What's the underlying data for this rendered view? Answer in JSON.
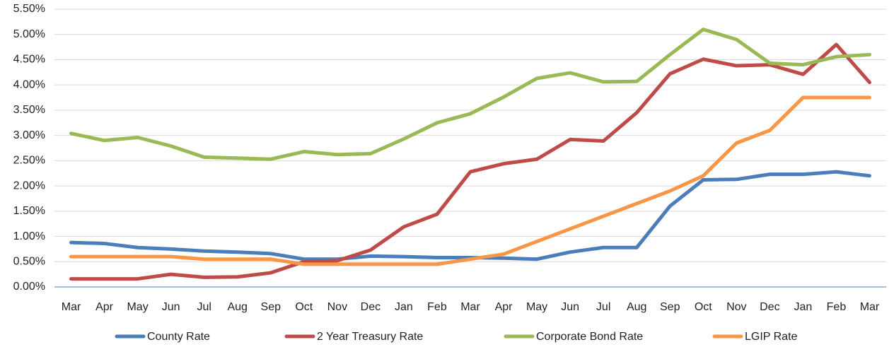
{
  "chart_data": {
    "type": "line",
    "categories": [
      "Mar",
      "Apr",
      "May",
      "Jun",
      "Jul",
      "Aug",
      "Sep",
      "Oct",
      "Nov",
      "Dec",
      "Jan",
      "Feb",
      "Mar",
      "Apr",
      "May",
      "Jun",
      "Jul",
      "Aug",
      "Sep",
      "Oct",
      "Nov",
      "Dec",
      "Jan",
      "Feb",
      "Mar"
    ],
    "series": [
      {
        "name": "County Rate",
        "color": "#4a7ebb",
        "values": [
          0.88,
          0.86,
          0.78,
          0.75,
          0.71,
          0.69,
          0.66,
          0.55,
          0.55,
          0.61,
          0.6,
          0.58,
          0.58,
          0.57,
          0.55,
          0.69,
          0.78,
          0.78,
          1.6,
          2.12,
          2.13,
          2.23,
          2.23,
          2.28,
          2.2
        ]
      },
      {
        "name": "2 Year Treasury Rate",
        "color": "#be4b48",
        "values": [
          0.16,
          0.16,
          0.16,
          0.25,
          0.19,
          0.2,
          0.28,
          0.5,
          0.52,
          0.73,
          1.19,
          1.44,
          2.28,
          2.44,
          2.53,
          2.92,
          2.89,
          3.45,
          4.22,
          4.51,
          4.38,
          4.4,
          4.21,
          4.8,
          4.05
        ]
      },
      {
        "name": "Corporate Bond Rate",
        "color": "#98b954",
        "values": [
          3.04,
          2.9,
          2.96,
          2.79,
          2.57,
          2.55,
          2.53,
          2.68,
          2.62,
          2.64,
          2.93,
          3.25,
          3.43,
          3.76,
          4.13,
          4.24,
          4.06,
          4.07,
          4.6,
          5.1,
          4.9,
          4.43,
          4.4,
          4.56,
          4.6
        ]
      },
      {
        "name": "LGIP Rate",
        "color": "#f79646",
        "values": [
          0.6,
          0.6,
          0.6,
          0.6,
          0.55,
          0.55,
          0.55,
          0.45,
          0.45,
          0.45,
          0.45,
          0.45,
          0.55,
          0.65,
          0.9,
          1.15,
          1.4,
          1.65,
          1.9,
          2.2,
          2.85,
          3.1,
          3.75,
          3.75,
          3.75
        ]
      }
    ],
    "ylim": [
      0,
      5.5
    ],
    "yticks": [
      {
        "value": 0,
        "label": "0.00%"
      },
      {
        "value": 0.5,
        "label": "0.50%"
      },
      {
        "value": 1,
        "label": "1.00%"
      },
      {
        "value": 1.5,
        "label": "1.50%"
      },
      {
        "value": 2,
        "label": "2.00%"
      },
      {
        "value": 2.5,
        "label": "2.50%"
      },
      {
        "value": 3,
        "label": "3.00%"
      },
      {
        "value": 3.5,
        "label": "3.50%"
      },
      {
        "value": 4,
        "label": "4.00%"
      },
      {
        "value": 4.5,
        "label": "4.50%"
      },
      {
        "value": 5,
        "label": "5.00%"
      },
      {
        "value": 5.5,
        "label": "5.50%"
      }
    ],
    "grid": true,
    "legend": "bottom"
  }
}
